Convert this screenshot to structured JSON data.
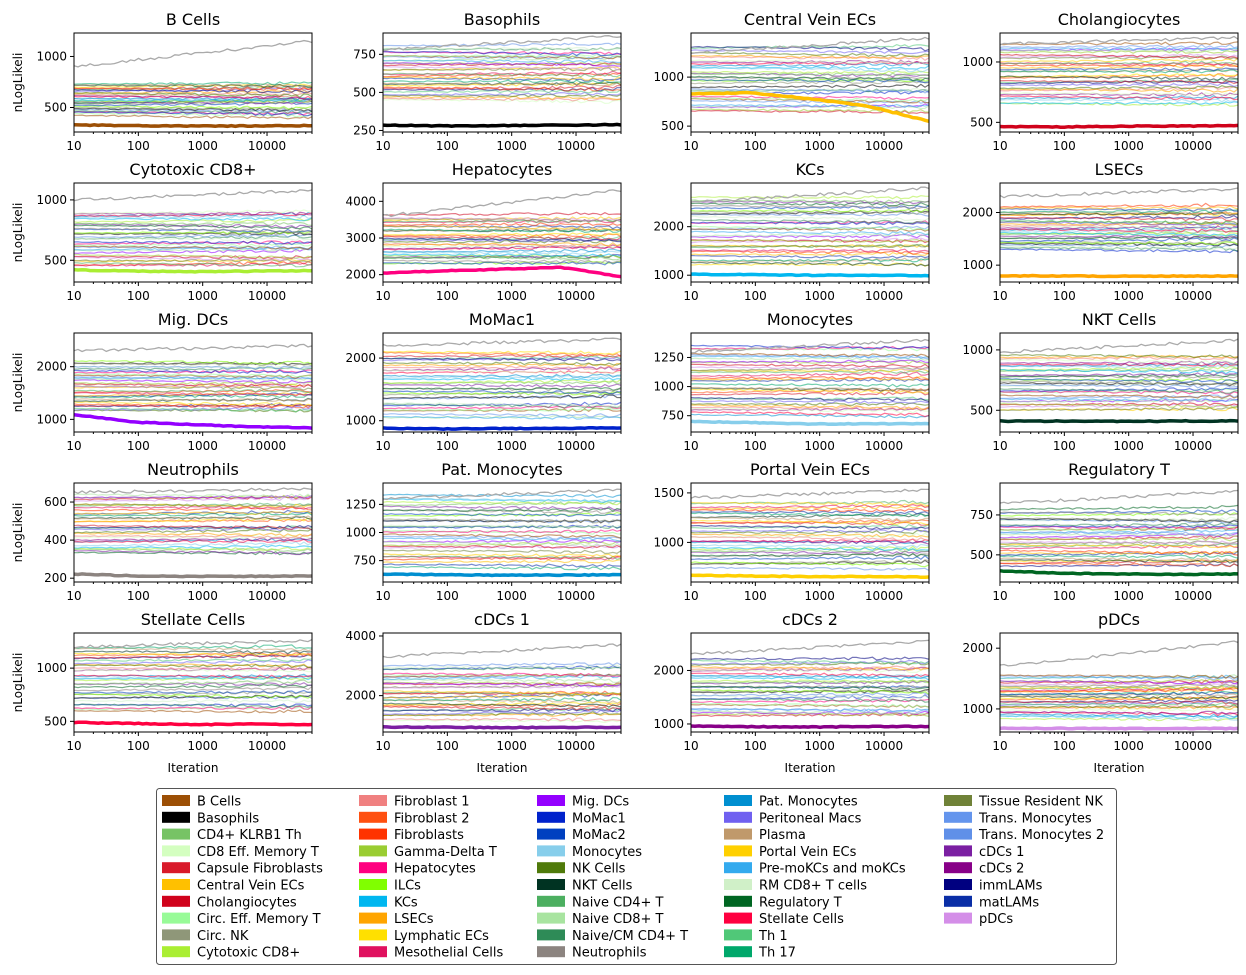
{
  "figure": {
    "ylabel": "nLogLikeli",
    "xlabel": "Iteration"
  },
  "chart_data": [
    {
      "type": "line",
      "title": "B Cells",
      "xscale": "log",
      "xlim": [
        10,
        50000
      ],
      "ylim": [
        260,
        1230
      ],
      "yticks": [
        500,
        1000
      ],
      "highlight": {
        "name": "B Cells",
        "color": "#9c4f05",
        "values": [
          330,
          322,
          318,
          320,
          322
        ]
      },
      "band": [
        430,
        730
      ],
      "outliers": [
        [
          900,
          1150
        ]
      ]
    },
    {
      "type": "line",
      "title": "Basophils",
      "xscale": "log",
      "xlim": [
        10,
        50000
      ],
      "ylim": [
        240,
        890
      ],
      "yticks": [
        250,
        500,
        750
      ],
      "highlight": {
        "name": "Basophils",
        "color": "#000000",
        "values": [
          285,
          280,
          282,
          285,
          288
        ]
      },
      "band": [
        450,
        800
      ],
      "outliers": [
        [
          780,
          870
        ]
      ]
    },
    {
      "type": "line",
      "title": "Central Vein ECs",
      "xscale": "log",
      "xlim": [
        10,
        50000
      ],
      "ylim": [
        440,
        1450
      ],
      "yticks": [
        500,
        1000
      ],
      "highlight": {
        "name": "Central Vein ECs",
        "color": "#ffc000",
        "values": [
          830,
          840,
          780,
          700,
          550
        ]
      },
      "band": [
        650,
        1300
      ],
      "outliers": [
        [
          1250,
          1400
        ]
      ]
    },
    {
      "type": "line",
      "title": "Cholangiocytes",
      "xscale": "log",
      "xlim": [
        10,
        50000
      ],
      "ylim": [
        420,
        1240
      ],
      "yticks": [
        500,
        1000
      ],
      "highlight": {
        "name": "Cholangiocytes",
        "color": "#d0021b",
        "values": [
          465,
          462,
          468,
          470,
          472
        ]
      },
      "band": [
        650,
        1150
      ],
      "outliers": [
        [
          1150,
          1200
        ]
      ]
    },
    {
      "type": "line",
      "title": "Cytotoxic CD8+",
      "xscale": "log",
      "xlim": [
        10,
        50000
      ],
      "ylim": [
        320,
        1140
      ],
      "yticks": [
        500,
        1000
      ],
      "highlight": {
        "name": "Cytotoxic CD8+",
        "color": "#aaee33",
        "values": [
          420,
          410,
          405,
          410,
          415
        ]
      },
      "band": [
        450,
        900
      ],
      "outliers": [
        [
          1000,
          1080
        ]
      ]
    },
    {
      "type": "line",
      "title": "Hepatocytes",
      "xscale": "log",
      "xlim": [
        10,
        50000
      ],
      "ylim": [
        1800,
        4500
      ],
      "yticks": [
        2000,
        3000,
        4000
      ],
      "highlight": {
        "name": "Hepatocytes",
        "color": "#ff0080",
        "values": [
          2050,
          2100,
          2150,
          2200,
          1950
        ]
      },
      "band": [
        2300,
        3600
      ],
      "outliers": [
        [
          3600,
          4300
        ]
      ]
    },
    {
      "type": "line",
      "title": "KCs",
      "xscale": "log",
      "xlim": [
        10,
        50000
      ],
      "ylim": [
        860,
        2900
      ],
      "yticks": [
        1000,
        2000
      ],
      "highlight": {
        "name": "KCs",
        "color": "#00b7f0",
        "values": [
          1020,
          1010,
          1000,
          1000,
          990
        ]
      },
      "band": [
        1200,
        2600
      ],
      "outliers": [
        [
          2500,
          2800
        ]
      ]
    },
    {
      "type": "line",
      "title": "LSECs",
      "xscale": "log",
      "xlim": [
        10,
        50000
      ],
      "ylim": [
        680,
        2560
      ],
      "yticks": [
        1000,
        2000
      ],
      "highlight": {
        "name": "LSECs",
        "color": "#ffa500",
        "values": [
          800,
          795,
          790,
          790,
          792
        ]
      },
      "band": [
        1300,
        2100
      ],
      "outliers": [
        [
          2300,
          2450
        ]
      ]
    },
    {
      "type": "line",
      "title": "Mig. DCs",
      "xscale": "log",
      "xlim": [
        10,
        50000
      ],
      "ylim": [
        760,
        2640
      ],
      "yticks": [
        1000,
        2000
      ],
      "highlight": {
        "name": "Mig. DCs",
        "color": "#9400ff",
        "values": [
          1090,
          950,
          900,
          860,
          840
        ]
      },
      "band": [
        1150,
        2100
      ],
      "outliers": [
        [
          2300,
          2400
        ]
      ]
    },
    {
      "type": "line",
      "title": "MoMac1",
      "xscale": "log",
      "xlim": [
        10,
        50000
      ],
      "ylim": [
        820,
        2400
      ],
      "yticks": [
        1000,
        2000
      ],
      "highlight": {
        "name": "MoMac1",
        "color": "#0022cc",
        "values": [
          880,
          870,
          875,
          880,
          885
        ]
      },
      "band": [
        1050,
        2100
      ],
      "outliers": [
        [
          2200,
          2300
        ]
      ]
    },
    {
      "type": "line",
      "title": "Monocytes",
      "xscale": "log",
      "xlim": [
        10,
        50000
      ],
      "ylim": [
        610,
        1460
      ],
      "yticks": [
        750,
        1000,
        1250
      ],
      "highlight": {
        "name": "Monocytes",
        "color": "#87ceeb",
        "values": [
          700,
          690,
          680,
          680,
          682
        ]
      },
      "band": [
        750,
        1350
      ],
      "outliers": [
        [
          1300,
          1400
        ]
      ]
    },
    {
      "type": "line",
      "title": "NKT Cells",
      "xscale": "log",
      "xlim": [
        10,
        50000
      ],
      "ylim": [
        320,
        1140
      ],
      "yticks": [
        500,
        1000
      ],
      "highlight": {
        "name": "NKT Cells",
        "color": "#003322",
        "values": [
          410,
          410,
          408,
          410,
          412
        ]
      },
      "band": [
        500,
        950
      ],
      "outliers": [
        [
          980,
          1080
        ]
      ]
    },
    {
      "type": "line",
      "title": "Neutrophils",
      "xscale": "log",
      "xlim": [
        10,
        50000
      ],
      "ylim": [
        180,
        700
      ],
      "yticks": [
        200,
        400,
        600
      ],
      "highlight": {
        "name": "Neutrophils",
        "color": "#8c8480",
        "values": [
          222,
          212,
          210,
          210,
          211
        ]
      },
      "band": [
        330,
        640
      ],
      "outliers": [
        [
          650,
          670
        ]
      ]
    },
    {
      "type": "line",
      "title": "Pat. Monocytes",
      "xscale": "log",
      "xlim": [
        10,
        50000
      ],
      "ylim": [
        560,
        1440
      ],
      "yticks": [
        750,
        1000,
        1250
      ],
      "highlight": {
        "name": "Pat. Monocytes",
        "color": "#008fd0",
        "values": [
          630,
          625,
          620,
          622,
          625
        ]
      },
      "band": [
        700,
        1320
      ],
      "outliers": [
        [
          1300,
          1380
        ]
      ]
    },
    {
      "type": "line",
      "title": "Portal Vein ECs",
      "xscale": "log",
      "xlim": [
        10,
        50000
      ],
      "ylim": [
        600,
        1600
      ],
      "yticks": [
        1000,
        1500
      ],
      "highlight": {
        "name": "Portal Vein ECs",
        "color": "#ffd000",
        "values": [
          670,
          660,
          655,
          655,
          650
        ]
      },
      "band": [
        750,
        1400
      ],
      "outliers": [
        [
          1450,
          1530
        ]
      ]
    },
    {
      "type": "line",
      "title": "Regulatory T",
      "xscale": "log",
      "xlim": [
        10,
        50000
      ],
      "ylim": [
        330,
        950
      ],
      "yticks": [
        500,
        750
      ],
      "highlight": {
        "name": "Regulatory T",
        "color": "#006622",
        "values": [
          400,
          385,
          380,
          378,
          380
        ]
      },
      "band": [
        430,
        780
      ],
      "outliers": [
        [
          820,
          900
        ]
      ]
    },
    {
      "type": "line",
      "title": "Stellate Cells",
      "xscale": "log",
      "xlim": [
        10,
        50000
      ],
      "ylim": [
        400,
        1330
      ],
      "yticks": [
        500,
        1000
      ],
      "highlight": {
        "name": "Stellate Cells",
        "color": "#ff0040",
        "values": [
          490,
          480,
          470,
          475,
          470
        ]
      },
      "band": [
        600,
        1200
      ],
      "outliers": [
        [
          1200,
          1260
        ]
      ]
    },
    {
      "type": "line",
      "title": "cDCs 1",
      "xscale": "log",
      "xlim": [
        10,
        50000
      ],
      "ylim": [
        780,
        4100
      ],
      "yticks": [
        2000,
        4000
      ],
      "highlight": {
        "name": "cDCs 1",
        "color": "#7b1fa2",
        "values": [
          950,
          940,
          930,
          935,
          940
        ]
      },
      "band": [
        1200,
        3000
      ],
      "outliers": [
        [
          3300,
          3700
        ]
      ]
    },
    {
      "type": "line",
      "title": "cDCs 2",
      "xscale": "log",
      "xlim": [
        10,
        50000
      ],
      "ylim": [
        850,
        2700
      ],
      "yticks": [
        1000,
        2000
      ],
      "highlight": {
        "name": "cDCs 2",
        "color": "#880088",
        "values": [
          960,
          950,
          945,
          950,
          955
        ]
      },
      "band": [
        1150,
        2200
      ],
      "outliers": [
        [
          2300,
          2550
        ]
      ]
    },
    {
      "type": "line",
      "title": "pDCs",
      "xscale": "log",
      "xlim": [
        10,
        50000
      ],
      "ylim": [
        620,
        2250
      ],
      "yticks": [
        1000,
        2000
      ],
      "highlight": {
        "name": "pDCs",
        "color": "#d48ee8",
        "values": [
          680,
          680,
          675,
          678,
          680
        ]
      },
      "band": [
        850,
        1550
      ],
      "outliers": [
        [
          1700,
          2100
        ]
      ]
    }
  ],
  "legend": [
    {
      "label": "B Cells",
      "color": "#9c4f05"
    },
    {
      "label": "Basophils",
      "color": "#000000"
    },
    {
      "label": "CD4+ KLRB1 Th",
      "color": "#77c365"
    },
    {
      "label": "CD8 Eff. Memory T",
      "color": "#d4ffc0"
    },
    {
      "label": "Capsule Fibroblasts",
      "color": "#d91a2a"
    },
    {
      "label": "Central Vein ECs",
      "color": "#ffc000"
    },
    {
      "label": "Cholangiocytes",
      "color": "#d0021b"
    },
    {
      "label": "Circ. Eff. Memory T",
      "color": "#98fb98"
    },
    {
      "label": "Circ. NK",
      "color": "#8f9779"
    },
    {
      "label": "Cytotoxic CD8+",
      "color": "#aaee33"
    },
    {
      "label": "Fibroblast 1",
      "color": "#f08080"
    },
    {
      "label": "Fibroblast 2",
      "color": "#ff5010"
    },
    {
      "label": "Fibroblasts",
      "color": "#ff3300"
    },
    {
      "label": "Gamma-Delta T",
      "color": "#9acd32"
    },
    {
      "label": "Hepatocytes",
      "color": "#ff0080"
    },
    {
      "label": "ILCs",
      "color": "#80ff00"
    },
    {
      "label": "KCs",
      "color": "#00b7f0"
    },
    {
      "label": "LSECs",
      "color": "#ffa500"
    },
    {
      "label": "Lymphatic ECs",
      "color": "#ffe000"
    },
    {
      "label": "Mesothelial Cells",
      "color": "#e0115f"
    },
    {
      "label": "Mig. DCs",
      "color": "#9400ff"
    },
    {
      "label": "MoMac1",
      "color": "#0022cc"
    },
    {
      "label": "MoMac2",
      "color": "#0040c0"
    },
    {
      "label": "Monocytes",
      "color": "#87ceeb"
    },
    {
      "label": "NK Cells",
      "color": "#4f7a0a"
    },
    {
      "label": "NKT Cells",
      "color": "#003322"
    },
    {
      "label": "Naive CD4+ T",
      "color": "#4caf60"
    },
    {
      "label": "Naive CD8+ T",
      "color": "#a8e4a0"
    },
    {
      "label": "Naive/CM CD4+ T",
      "color": "#2e8b57"
    },
    {
      "label": "Neutrophils",
      "color": "#8c8480"
    },
    {
      "label": "Pat. Monocytes",
      "color": "#008fd0"
    },
    {
      "label": "Peritoneal Macs",
      "color": "#7060f0"
    },
    {
      "label": "Plasma",
      "color": "#c0996b"
    },
    {
      "label": "Portal Vein ECs",
      "color": "#ffd000"
    },
    {
      "label": "Pre-moKCs and moKCs",
      "color": "#33aaee"
    },
    {
      "label": "RM CD8+ T cells",
      "color": "#d0f0c8"
    },
    {
      "label": "Regulatory T",
      "color": "#006622"
    },
    {
      "label": "Stellate Cells",
      "color": "#ff0040"
    },
    {
      "label": "Th 1",
      "color": "#50c878"
    },
    {
      "label": "Th 17",
      "color": "#00a86b"
    },
    {
      "label": "Tissue Resident NK",
      "color": "#708238"
    },
    {
      "label": "Trans. Monocytes",
      "color": "#6495ed"
    },
    {
      "label": "Trans. Monocytes 2",
      "color": "#6090e8"
    },
    {
      "label": "cDCs 1",
      "color": "#7b1fa2"
    },
    {
      "label": "cDCs 2",
      "color": "#880088"
    },
    {
      "label": "immLAMs",
      "color": "#000080"
    },
    {
      "label": "matLAMs",
      "color": "#0a2ea6"
    },
    {
      "label": "pDCs",
      "color": "#d48ee8"
    }
  ],
  "xtick_labels": [
    "10",
    "100",
    "1000",
    "10000"
  ]
}
